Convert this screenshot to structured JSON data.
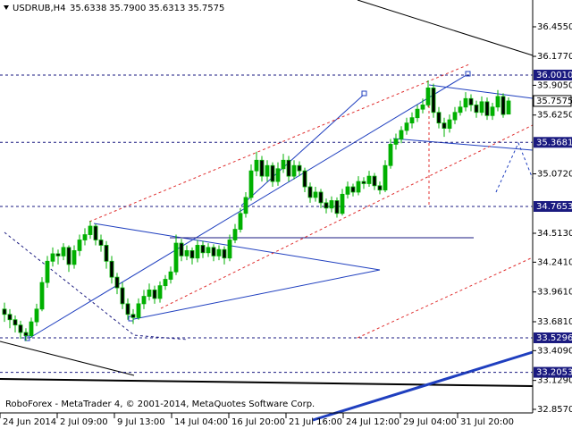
{
  "chart_data": {
    "type": "candlestick",
    "symbol": "USDRUB,H4",
    "header_ohlc": [
      35.6338,
      {
        "value": 35.79,
        "label": "35.7900"
      },
      35.6313,
      35.7575
    ],
    "watermark": "RoboForex - MetaTrader 4, © 2001-2014, MetaQuotes Software Corp.",
    "up_color": "#00b000",
    "down_color": "#000000",
    "wick_color": "#00b000",
    "ylim": [
      32.773,
      36.707
    ],
    "yticks": [
      {
        "value": 36.455,
        "label": "36.4550"
      },
      {
        "value": 36.177,
        "label": "36.1770"
      },
      {
        "value": 35.905,
        "label": "35.9050"
      },
      {
        "value": 35.625,
        "label": "35.6250"
      },
      {
        "value": 35.072,
        "label": "35.0720"
      },
      {
        "value": 34.513,
        "label": "34.5130"
      },
      {
        "value": 34.241,
        "label": "34.2410"
      },
      {
        "value": 33.961,
        "label": "33.9610"
      },
      {
        "value": 33.681,
        "label": "33.6810"
      },
      {
        "value": 33.409,
        "label": "33.4090"
      },
      {
        "value": 33.129,
        "label": "33.1290"
      },
      {
        "value": 32.857,
        "label": "32.8570"
      }
    ],
    "levels": [
      {
        "value": 36.001,
        "label": "36.0010",
        "color": "#1a1a80"
      },
      {
        "value": 35.3681,
        "color": "#1a1a80"
      },
      {
        "value": 34.7653,
        "color": "#1a1a80"
      },
      {
        "value": 33.5296,
        "color": "#1a1a80"
      },
      {
        "value": 33.2053,
        "color": "#1a1a80"
      }
    ],
    "current_price": 35.7575,
    "xlabels": [
      "24 Jun 2014",
      "2 Jul 09:00",
      "9 Jul 13:00",
      "14 Jul 04:00",
      "16 Jul 20:00",
      "21 Jul 16:00",
      "24 Jul 12:00",
      "29 Jul 04:00",
      "31 Jul 20:00"
    ],
    "candles": [
      [
        33.8,
        33.86,
        33.68,
        33.75
      ],
      [
        33.75,
        33.8,
        33.62,
        33.7
      ],
      [
        33.7,
        33.74,
        33.58,
        33.65
      ],
      [
        33.65,
        33.69,
        33.52,
        33.58
      ],
      [
        33.58,
        33.62,
        33.5,
        33.55
      ],
      [
        33.55,
        33.72,
        33.53,
        33.68
      ],
      [
        33.68,
        33.85,
        33.64,
        33.8
      ],
      [
        33.8,
        34.1,
        33.78,
        34.05
      ],
      [
        34.05,
        34.3,
        34.0,
        34.25
      ],
      [
        34.25,
        34.38,
        34.2,
        34.32
      ],
      [
        34.32,
        34.36,
        34.22,
        34.3
      ],
      [
        34.3,
        34.42,
        34.26,
        34.38
      ],
      [
        34.38,
        34.4,
        34.15,
        34.22
      ],
      [
        34.22,
        34.4,
        34.18,
        34.35
      ],
      [
        34.35,
        34.5,
        34.3,
        34.45
      ],
      [
        34.45,
        34.56,
        34.4,
        34.5
      ],
      [
        34.5,
        34.63,
        34.46,
        34.58
      ],
      [
        34.58,
        34.6,
        34.4,
        34.45
      ],
      [
        34.45,
        34.5,
        34.34,
        34.4
      ],
      [
        34.4,
        34.44,
        34.18,
        34.25
      ],
      [
        34.25,
        34.3,
        34.04,
        34.1
      ],
      [
        34.1,
        34.14,
        33.94,
        34.0
      ],
      [
        34.0,
        34.05,
        33.8,
        33.85
      ],
      [
        33.85,
        33.9,
        33.7,
        33.75
      ],
      [
        33.75,
        33.8,
        33.66,
        33.72
      ],
      [
        33.72,
        33.9,
        33.7,
        33.85
      ],
      [
        33.85,
        33.98,
        33.8,
        33.92
      ],
      [
        33.92,
        34.04,
        33.88,
        33.98
      ],
      [
        33.98,
        34.02,
        33.85,
        33.9
      ],
      [
        33.9,
        34.06,
        33.86,
        34.02
      ],
      [
        34.02,
        34.12,
        33.98,
        34.08
      ],
      [
        34.08,
        34.2,
        34.04,
        34.15
      ],
      [
        34.15,
        34.5,
        34.12,
        34.42
      ],
      [
        34.42,
        34.46,
        34.25,
        34.3
      ],
      [
        34.3,
        34.4,
        34.26,
        34.35
      ],
      [
        34.35,
        34.38,
        34.22,
        34.28
      ],
      [
        34.28,
        34.45,
        34.24,
        34.4
      ],
      [
        34.4,
        34.44,
        34.28,
        34.33
      ],
      [
        34.33,
        34.42,
        34.29,
        34.38
      ],
      [
        34.38,
        34.41,
        34.25,
        34.3
      ],
      [
        34.3,
        34.4,
        34.26,
        34.36
      ],
      [
        34.36,
        34.39,
        34.22,
        34.28
      ],
      [
        34.28,
        34.5,
        34.25,
        34.45
      ],
      [
        34.45,
        34.6,
        34.42,
        34.55
      ],
      [
        34.55,
        34.75,
        34.52,
        34.7
      ],
      [
        34.7,
        34.9,
        34.66,
        34.85
      ],
      [
        34.85,
        35.16,
        34.82,
        35.1
      ],
      [
        35.1,
        35.28,
        35.05,
        35.2
      ],
      [
        35.2,
        35.24,
        35.0,
        35.05
      ],
      [
        35.05,
        35.2,
        35.0,
        35.15
      ],
      [
        35.15,
        35.18,
        34.95,
        35.0
      ],
      [
        35.0,
        35.18,
        34.96,
        35.12
      ],
      [
        35.12,
        35.26,
        35.08,
        35.2
      ],
      [
        35.2,
        35.24,
        35.0,
        35.05
      ],
      [
        35.05,
        35.2,
        35.02,
        35.15
      ],
      [
        35.15,
        35.19,
        35.05,
        35.1
      ],
      [
        35.1,
        35.13,
        34.9,
        34.95
      ],
      [
        34.95,
        34.99,
        34.8,
        34.85
      ],
      [
        34.85,
        34.95,
        34.81,
        34.9
      ],
      [
        34.9,
        34.93,
        34.75,
        34.8
      ],
      [
        34.8,
        34.84,
        34.7,
        34.75
      ],
      [
        34.75,
        34.86,
        34.71,
        34.82
      ],
      [
        34.82,
        34.85,
        34.66,
        34.7
      ],
      [
        34.7,
        34.93,
        34.68,
        34.88
      ],
      [
        34.88,
        35.0,
        34.84,
        34.95
      ],
      [
        34.95,
        34.98,
        34.86,
        34.9
      ],
      [
        34.9,
        35.05,
        34.87,
        35.0
      ],
      [
        35.0,
        35.04,
        34.93,
        34.98
      ],
      [
        34.98,
        35.1,
        34.95,
        35.05
      ],
      [
        35.05,
        35.08,
        34.92,
        34.96
      ],
      [
        34.96,
        35.0,
        34.88,
        34.92
      ],
      [
        34.92,
        35.2,
        34.9,
        35.15
      ],
      [
        35.15,
        35.4,
        35.12,
        35.35
      ],
      [
        35.35,
        35.45,
        35.3,
        35.4
      ],
      [
        35.4,
        35.52,
        35.36,
        35.48
      ],
      [
        35.48,
        35.6,
        35.44,
        35.55
      ],
      [
        35.55,
        35.65,
        35.5,
        35.6
      ],
      [
        35.6,
        35.72,
        35.56,
        35.68
      ],
      [
        35.68,
        35.78,
        35.64,
        35.72
      ],
      [
        35.72,
        35.95,
        35.7,
        35.88
      ],
      [
        35.88,
        35.92,
        35.6,
        35.65
      ],
      [
        35.65,
        35.7,
        35.5,
        35.55
      ],
      [
        35.55,
        35.6,
        35.42,
        35.5
      ],
      [
        35.5,
        35.63,
        35.46,
        35.58
      ],
      [
        35.58,
        35.7,
        35.54,
        35.65
      ],
      [
        35.65,
        35.76,
        35.62,
        35.7
      ],
      [
        35.7,
        35.84,
        35.66,
        35.78
      ],
      [
        35.78,
        35.82,
        35.66,
        35.72
      ],
      [
        35.72,
        35.76,
        35.6,
        35.65
      ],
      [
        35.65,
        35.8,
        35.62,
        35.75
      ],
      [
        35.75,
        35.79,
        35.58,
        35.62
      ],
      [
        35.62,
        35.74,
        35.58,
        35.7
      ],
      [
        35.7,
        35.86,
        35.66,
        35.8
      ],
      [
        35.8,
        35.83,
        35.6,
        35.63
      ],
      [
        35.6338,
        35.79,
        35.6313,
        35.7575
      ]
    ]
  }
}
